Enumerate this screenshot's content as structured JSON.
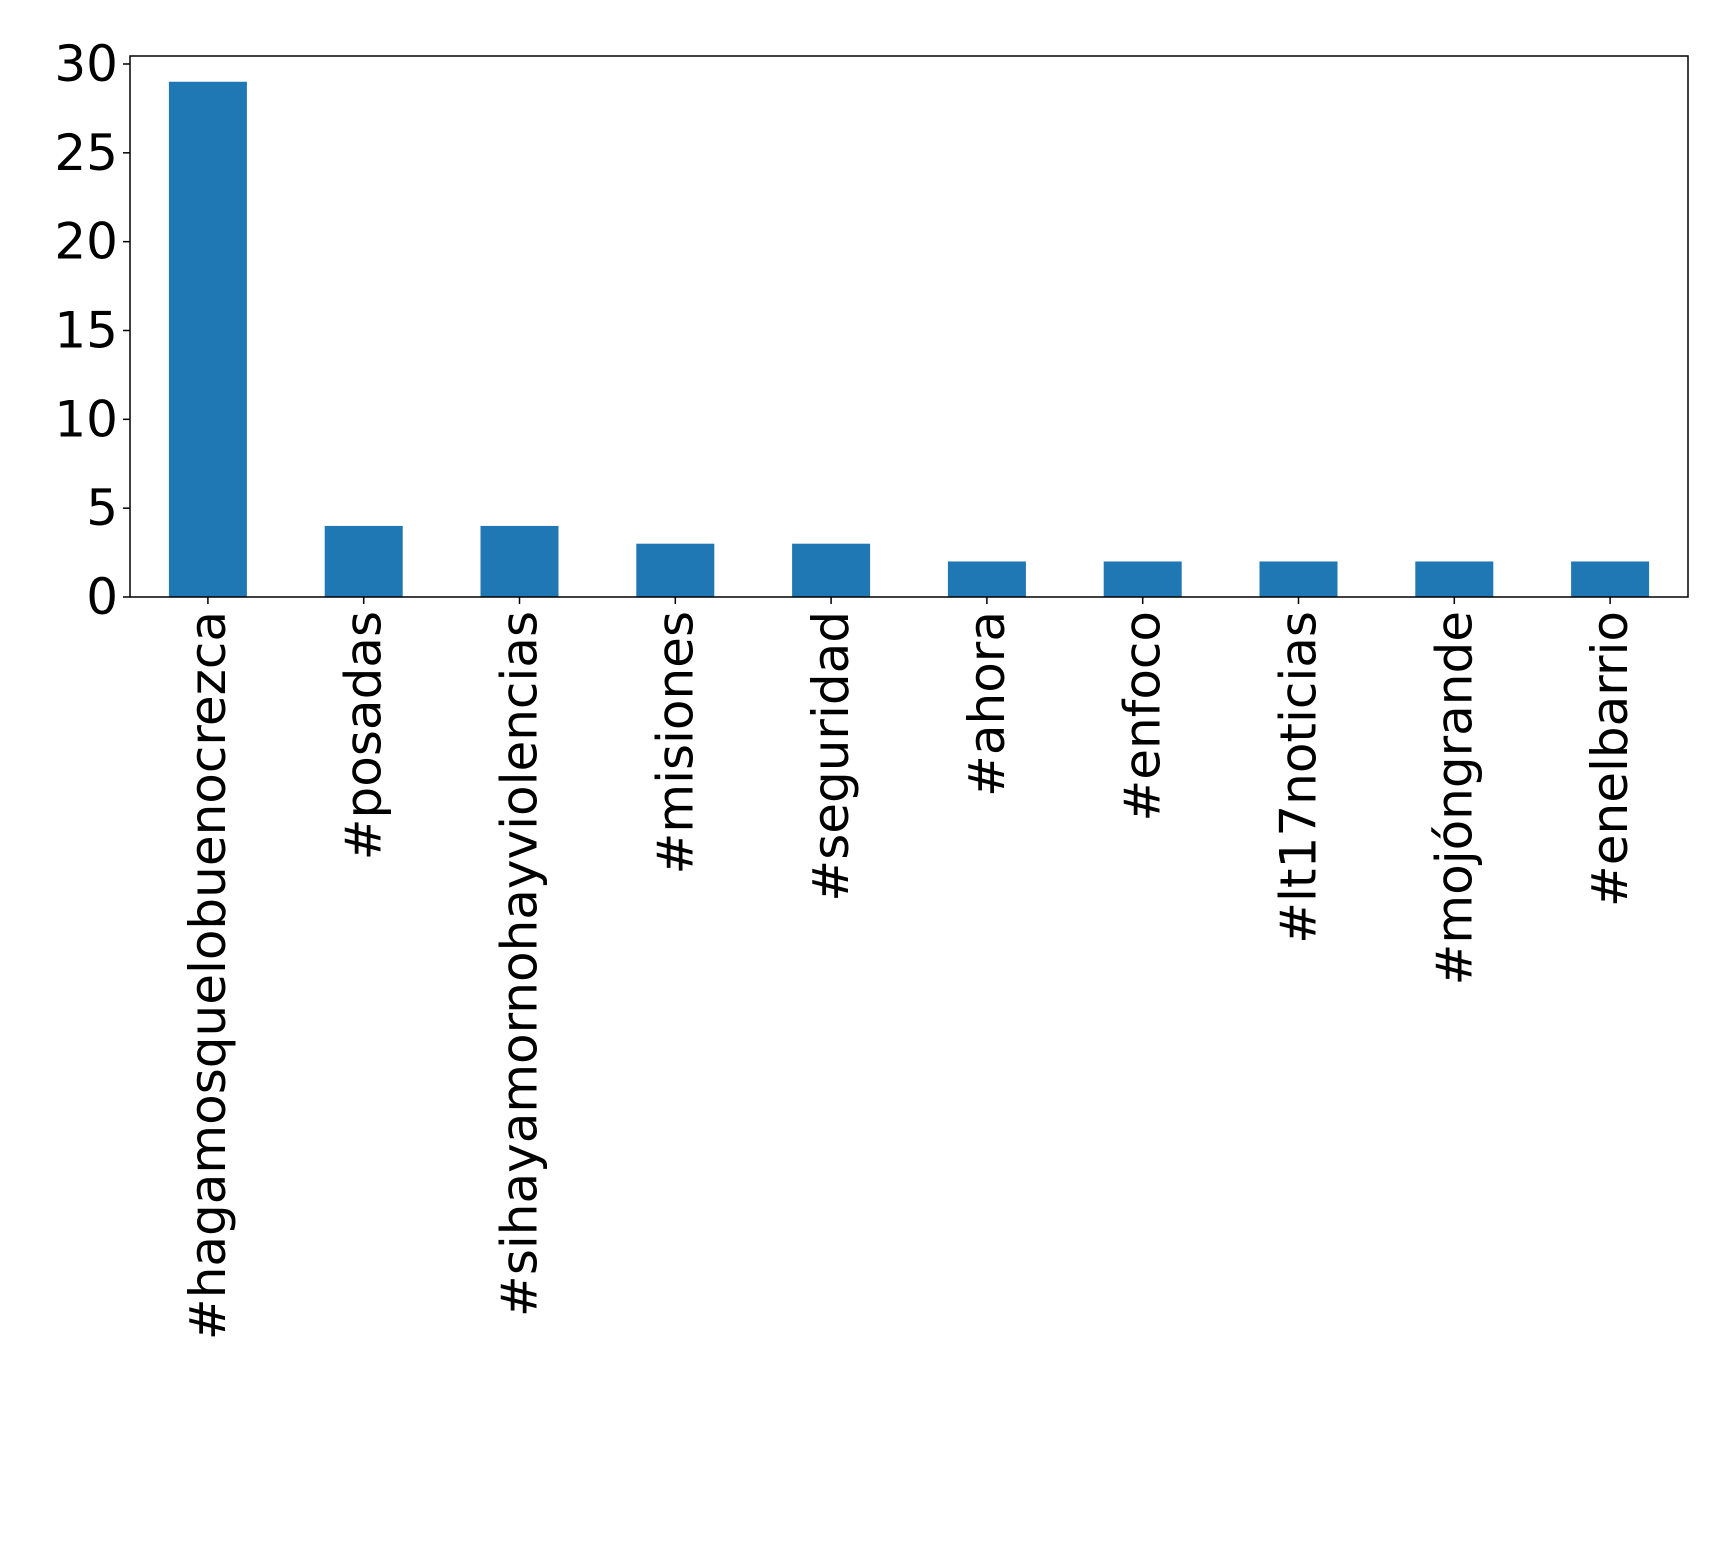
{
  "chart_data": {
    "type": "bar",
    "title": "",
    "xlabel": "",
    "ylabel": "",
    "categories": [
      "#hagamosquelobuenocrezca",
      "#posadas",
      "#sihayamornohayviolencias",
      "#misiones",
      "#seguridad",
      "#ahora",
      "#enfoco",
      "#lt17noticias",
      "#mojóngrande",
      "#enelbarrio"
    ],
    "values": [
      29,
      4,
      4,
      3,
      3,
      2,
      2,
      2,
      2,
      2
    ],
    "ylim": [
      0,
      30.45
    ],
    "yticks": [
      0,
      5,
      10,
      15,
      20,
      25,
      30
    ],
    "bar_color": "#1f77b4",
    "grid": false,
    "legend": "none",
    "x_tick_rotation": "vertical"
  }
}
